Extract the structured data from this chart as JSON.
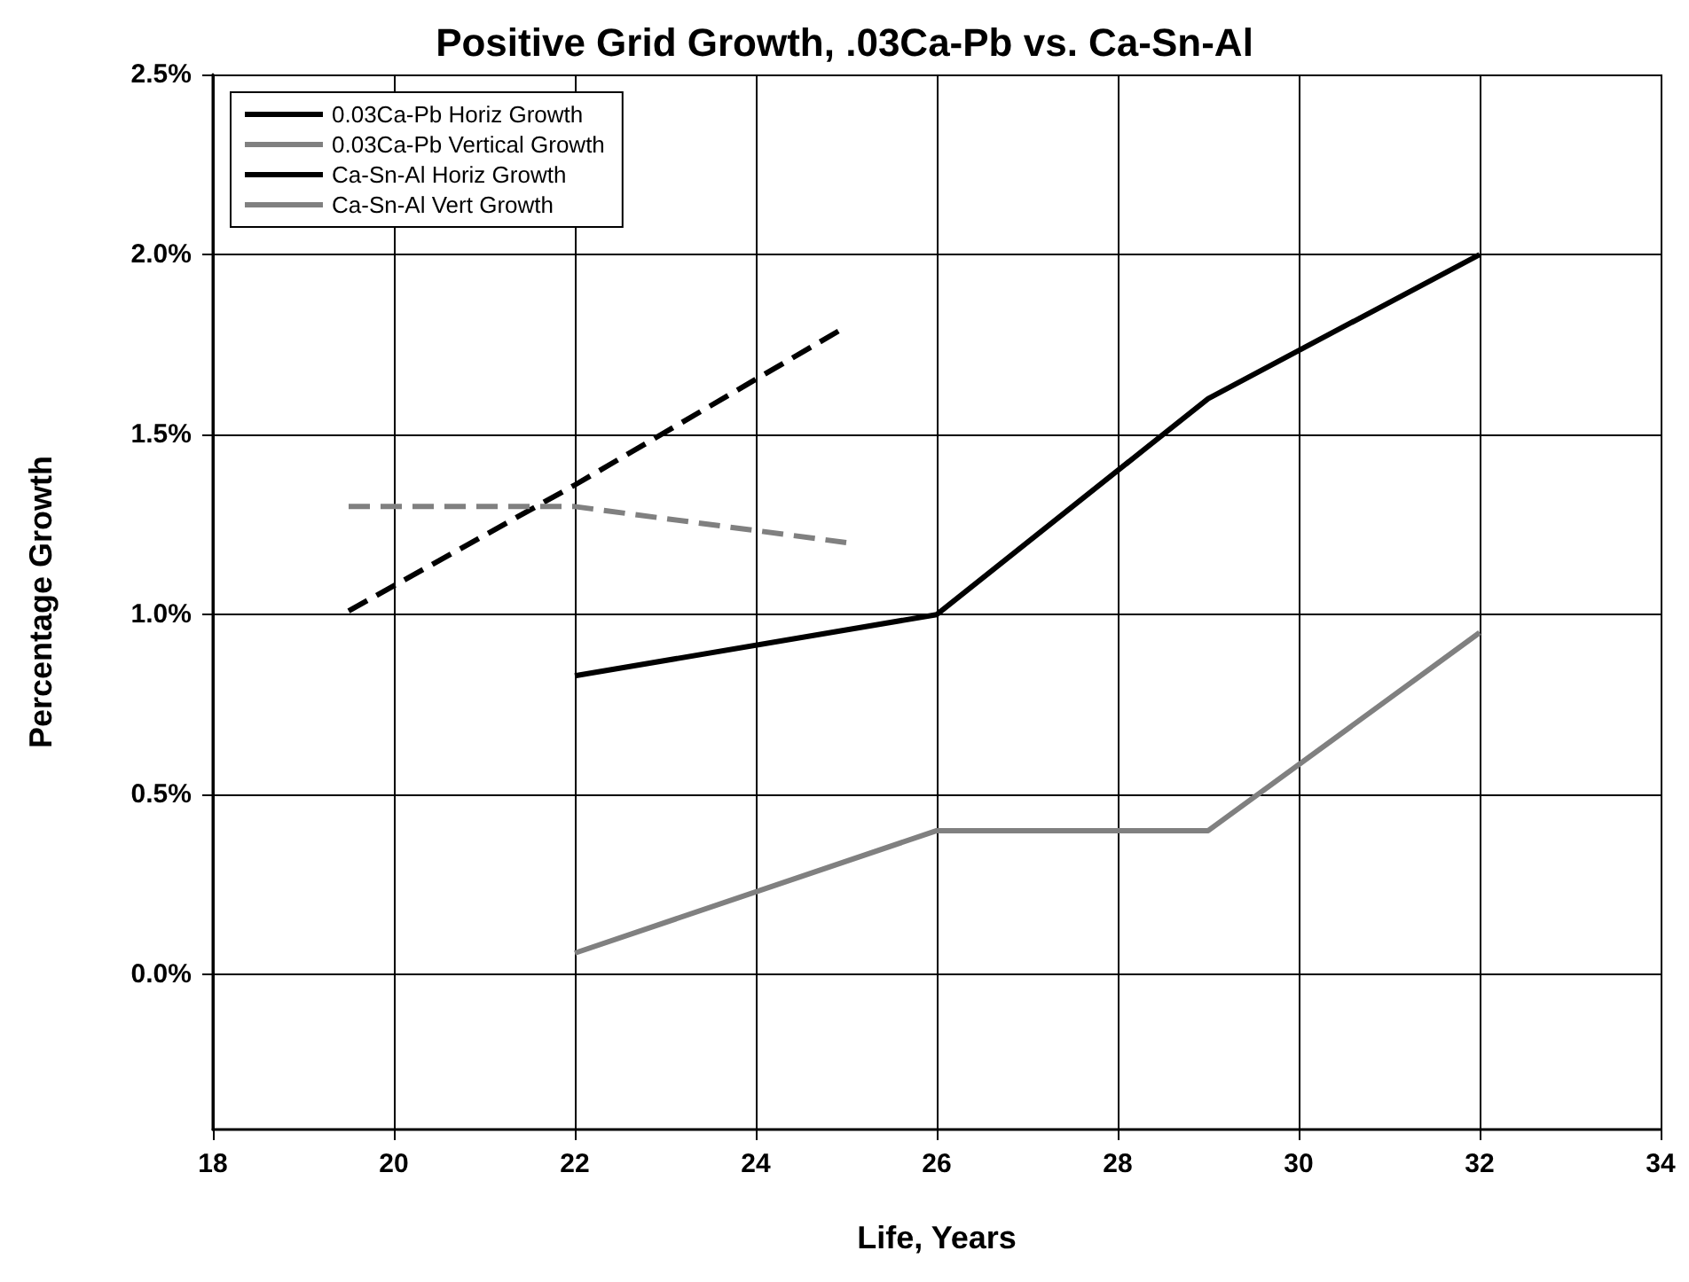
{
  "chart_data": {
    "type": "line",
    "title": "Positive Grid Growth, .03Ca-Pb vs. Ca-Sn-Al",
    "xlabel": "Life, Years",
    "ylabel": "Percentage Growth",
    "xlim": [
      18,
      34
    ],
    "xticks": [
      18,
      20,
      22,
      24,
      26,
      28,
      30,
      32,
      34
    ],
    "ylim": [
      -0.43,
      2.5
    ],
    "yticks": [
      {
        "value": 0,
        "label": "0.0%"
      },
      {
        "value": 0.5,
        "label": "0.5%"
      },
      {
        "value": 1,
        "label": "1.0%"
      },
      {
        "value": 1.5,
        "label": "1.5%"
      },
      {
        "value": 2,
        "label": "2.0%"
      },
      {
        "value": 2.5,
        "label": "2.5%"
      }
    ],
    "grid": true,
    "legend": "top left",
    "marker": "none",
    "series": [
      {
        "name": "0.03Ca-Pb Horiz Growth",
        "color": "#000000",
        "line_style": "dashed",
        "x": [
          19.5,
          22,
          25
        ],
        "values": [
          1.01,
          1.36,
          1.8
        ]
      },
      {
        "name": "0.03Ca-Pb Vertical Growth",
        "color": "#808080",
        "line_style": "dashed",
        "x": [
          19.5,
          22,
          25
        ],
        "values": [
          1.3,
          1.3,
          1.2
        ]
      },
      {
        "name": "Ca-Sn-Al Horiz Growth",
        "color": "#000000",
        "line_style": "solid",
        "x": [
          22,
          26,
          29,
          32
        ],
        "values": [
          0.83,
          1.0,
          1.6,
          2.0
        ]
      },
      {
        "name": "Ca-Sn-Al Vert Growth",
        "color": "#808080",
        "line_style": "solid",
        "x": [
          22,
          26,
          29,
          32
        ],
        "values": [
          0.06,
          0.4,
          0.4,
          0.95
        ]
      }
    ]
  }
}
